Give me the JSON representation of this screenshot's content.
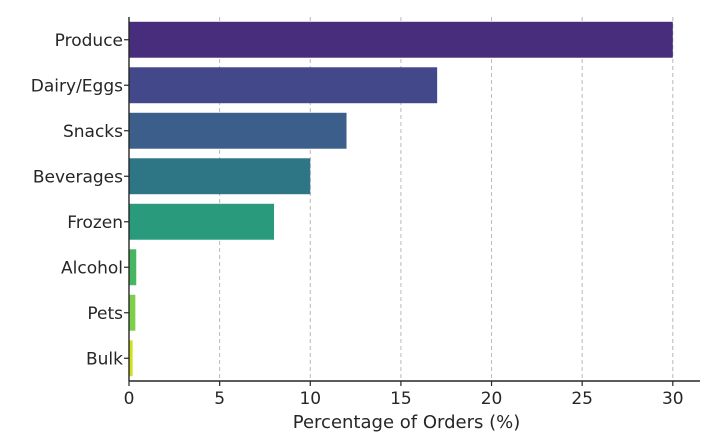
{
  "chart_data": {
    "type": "bar",
    "orientation": "horizontal",
    "title": "",
    "xlabel": "Percentage of Orders (%)",
    "ylabel": "",
    "categories": [
      "Produce",
      "Dairy/Eggs",
      "Snacks",
      "Beverages",
      "Frozen",
      "Alcohol",
      "Pets",
      "Bulk"
    ],
    "values": [
      30,
      17,
      12,
      10,
      8,
      0.4,
      0.35,
      0.2
    ],
    "colors": [
      "#472d7b",
      "#43488a",
      "#3b5f8a",
      "#2e7685",
      "#2a9a7c",
      "#48b660",
      "#7ccf48",
      "#cfe11c"
    ],
    "xlim": [
      0,
      31.5
    ],
    "xticks": [
      0,
      5,
      10,
      15,
      20,
      25,
      30
    ],
    "grid": "x-dashed",
    "legend": "none"
  }
}
